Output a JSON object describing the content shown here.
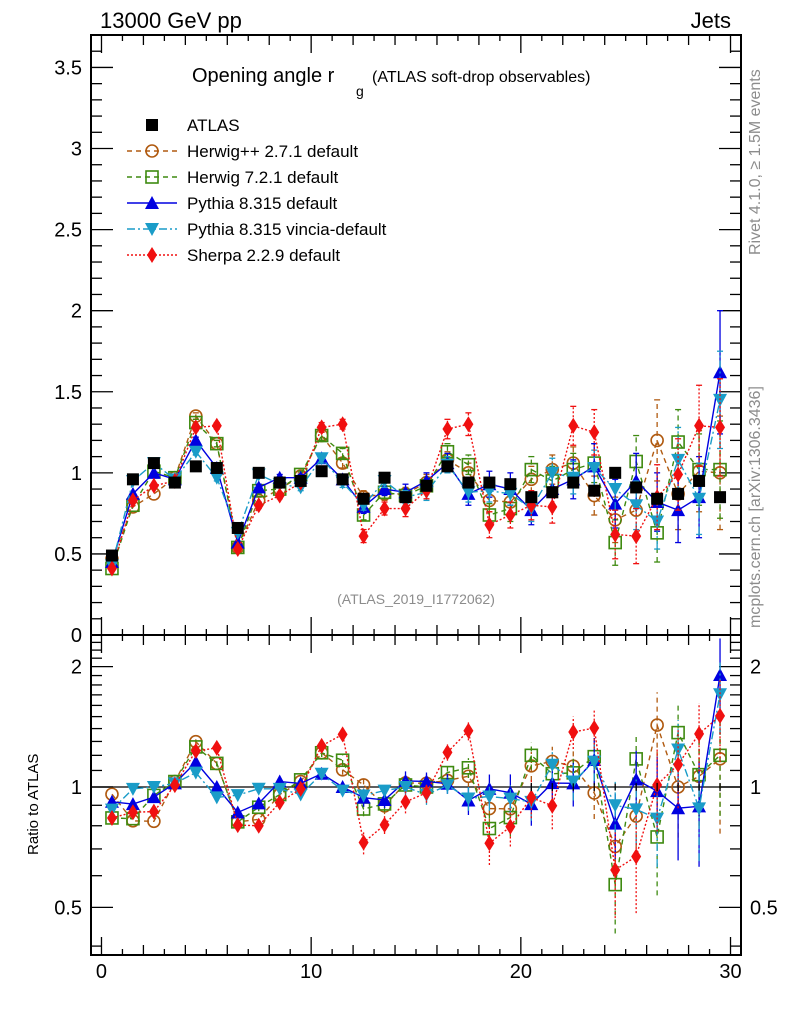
{
  "header": {
    "left": "13000 GeV pp",
    "right": "Jets"
  },
  "side_labels": {
    "top": "Rivet 4.1.0, ≥ 1.5M events",
    "bottom": "mcplots.cern.ch [arXiv:1306.3436]"
  },
  "chart_data": {
    "type": "line",
    "title": "Opening angle r",
    "title_subscript": "g",
    "title_suffix": "(ATLAS soft-drop observables)",
    "analysis_id": "(ATLAS_2019_I1772062)",
    "xlabel": "",
    "ylabel": "",
    "ratio_ylabel": "Ratio to ATLAS",
    "xlim": [
      -0.5,
      30.5
    ],
    "ylim": [
      0,
      3.7
    ],
    "ratio_ylim": [
      0.38,
      2.4
    ],
    "ratio_scale": "log",
    "xticks": [
      "0",
      "10",
      "20",
      "30"
    ],
    "yticks": [
      "0",
      "0.5",
      "1",
      "1.5",
      "2",
      "2.5",
      "3",
      "3.5"
    ],
    "ratio_yticks": [
      "0.5",
      "1",
      "2"
    ],
    "legend_position": "top-left",
    "x": [
      0.5,
      1.5,
      2.5,
      3.5,
      4.5,
      5.5,
      6.5,
      7.5,
      8.5,
      9.5,
      10.5,
      11.5,
      12.5,
      13.5,
      14.5,
      15.5,
      16.5,
      17.5,
      18.5,
      19.5,
      20.5,
      21.5,
      22.5,
      23.5,
      24.5,
      25.5,
      26.5,
      27.5,
      28.5,
      29.5
    ],
    "series": [
      {
        "name": "ATLAS",
        "color": "#000000",
        "marker": "square-filled",
        "line": "none",
        "values": [
          0.49,
          0.96,
          1.06,
          0.94,
          1.04,
          1.03,
          0.66,
          1.0,
          0.94,
          0.95,
          1.01,
          0.96,
          0.84,
          0.97,
          0.85,
          0.92,
          1.04,
          0.94,
          0.94,
          0.93,
          0.85,
          0.88,
          0.94,
          0.89,
          1.0,
          0.91,
          0.84,
          0.87,
          0.95,
          0.85
        ],
        "errors": [
          0.01,
          0.01,
          0.01,
          0.01,
          0.01,
          0.01,
          0.01,
          0.01,
          0.01,
          0.01,
          0.01,
          0.01,
          0.01,
          0.01,
          0.01,
          0.01,
          0.01,
          0.01,
          0.01,
          0.01,
          0.02,
          0.02,
          0.02,
          0.02,
          0.02,
          0.02,
          0.02,
          0.02,
          0.02,
          0.02
        ]
      },
      {
        "name": "Herwig++ 2.7.1 default",
        "color": "#b05a10",
        "marker": "circle-open",
        "line": "dashed",
        "values": [
          0.47,
          0.79,
          0.87,
          0.97,
          1.35,
          1.18,
          0.54,
          0.83,
          0.9,
          0.98,
          1.23,
          1.06,
          0.85,
          0.87,
          0.87,
          0.94,
          1.08,
          1.0,
          0.83,
          0.82,
          0.96,
          1.02,
          1.06,
          0.86,
          0.71,
          0.77,
          1.2,
          0.87,
          1.01,
          1.0
        ],
        "errors": [
          0.01,
          0.01,
          0.01,
          0.01,
          0.02,
          0.02,
          0.01,
          0.02,
          0.02,
          0.02,
          0.03,
          0.03,
          0.04,
          0.04,
          0.04,
          0.05,
          0.05,
          0.06,
          0.07,
          0.08,
          0.08,
          0.09,
          0.1,
          0.12,
          0.14,
          0.16,
          0.25,
          0.22,
          0.25,
          0.35
        ]
      },
      {
        "name": "Herwig 7.2.1 default",
        "color": "#3e8a10",
        "marker": "square-open",
        "line": "dashed",
        "values": [
          0.41,
          0.8,
          1.01,
          0.97,
          1.31,
          1.18,
          0.54,
          0.89,
          0.9,
          0.99,
          1.23,
          1.12,
          0.74,
          0.88,
          0.86,
          0.92,
          1.13,
          1.05,
          0.74,
          0.78,
          1.02,
          0.95,
          1.02,
          1.06,
          0.57,
          1.07,
          0.63,
          1.19,
          1.02,
          1.02
        ],
        "errors": [
          0.01,
          0.01,
          0.01,
          0.01,
          0.02,
          0.02,
          0.01,
          0.02,
          0.02,
          0.02,
          0.03,
          0.03,
          0.03,
          0.04,
          0.04,
          0.05,
          0.05,
          0.06,
          0.07,
          0.08,
          0.08,
          0.09,
          0.1,
          0.12,
          0.14,
          0.16,
          0.18,
          0.2,
          0.22,
          0.3
        ]
      },
      {
        "name": "Pythia 8.315 default",
        "color": "#0000e0",
        "marker": "triangle-up-filled",
        "line": "solid",
        "values": [
          0.45,
          0.87,
          1.0,
          0.96,
          1.2,
          1.03,
          0.57,
          0.91,
          0.97,
          0.97,
          1.09,
          0.96,
          0.79,
          0.9,
          0.88,
          0.95,
          1.06,
          0.87,
          0.93,
          0.9,
          0.77,
          0.9,
          0.96,
          1.04,
          0.81,
          0.95,
          0.82,
          0.77,
          0.85,
          1.62
        ],
        "errors": [
          0.01,
          0.01,
          0.01,
          0.01,
          0.02,
          0.02,
          0.01,
          0.02,
          0.02,
          0.02,
          0.03,
          0.03,
          0.04,
          0.04,
          0.05,
          0.05,
          0.06,
          0.07,
          0.08,
          0.1,
          0.09,
          0.1,
          0.12,
          0.14,
          0.15,
          0.17,
          0.18,
          0.2,
          0.25,
          0.38
        ]
      },
      {
        "name": "Pythia 8.315 vincia-default",
        "color": "#1a9cc8",
        "marker": "triangle-down-filled",
        "line": "dashdot",
        "values": [
          0.43,
          0.95,
          1.06,
          0.96,
          1.13,
          0.97,
          0.63,
          0.99,
          0.93,
          0.91,
          1.09,
          0.94,
          0.8,
          0.95,
          0.85,
          0.88,
          1.05,
          0.88,
          0.89,
          0.87,
          0.78,
          1.0,
          0.97,
          1.03,
          0.9,
          0.8,
          0.7,
          1.08,
          0.84,
          1.45
        ],
        "errors": [
          0.01,
          0.01,
          0.01,
          0.01,
          0.02,
          0.02,
          0.01,
          0.02,
          0.02,
          0.02,
          0.03,
          0.03,
          0.03,
          0.04,
          0.04,
          0.05,
          0.05,
          0.06,
          0.07,
          0.07,
          0.08,
          0.09,
          0.1,
          0.11,
          0.13,
          0.15,
          0.17,
          0.2,
          0.22,
          0.3
        ]
      },
      {
        "name": "Sherpa 2.2.9 default",
        "color": "#f01010",
        "marker": "diamond-filled",
        "line": "dotted",
        "values": [
          0.41,
          0.83,
          0.92,
          0.95,
          1.28,
          1.29,
          0.53,
          0.8,
          0.86,
          0.94,
          1.28,
          1.3,
          0.61,
          0.78,
          0.78,
          0.89,
          1.27,
          1.3,
          0.68,
          0.74,
          0.8,
          0.79,
          1.29,
          1.25,
          0.62,
          0.61,
          0.85,
          0.99,
          1.29,
          1.28
        ],
        "errors": [
          0.01,
          0.01,
          0.01,
          0.01,
          0.02,
          0.02,
          0.01,
          0.02,
          0.02,
          0.02,
          0.03,
          0.03,
          0.04,
          0.04,
          0.05,
          0.05,
          0.06,
          0.07,
          0.08,
          0.08,
          0.09,
          0.1,
          0.12,
          0.14,
          0.15,
          0.17,
          0.2,
          0.22,
          0.25,
          0.3
        ]
      }
    ]
  }
}
